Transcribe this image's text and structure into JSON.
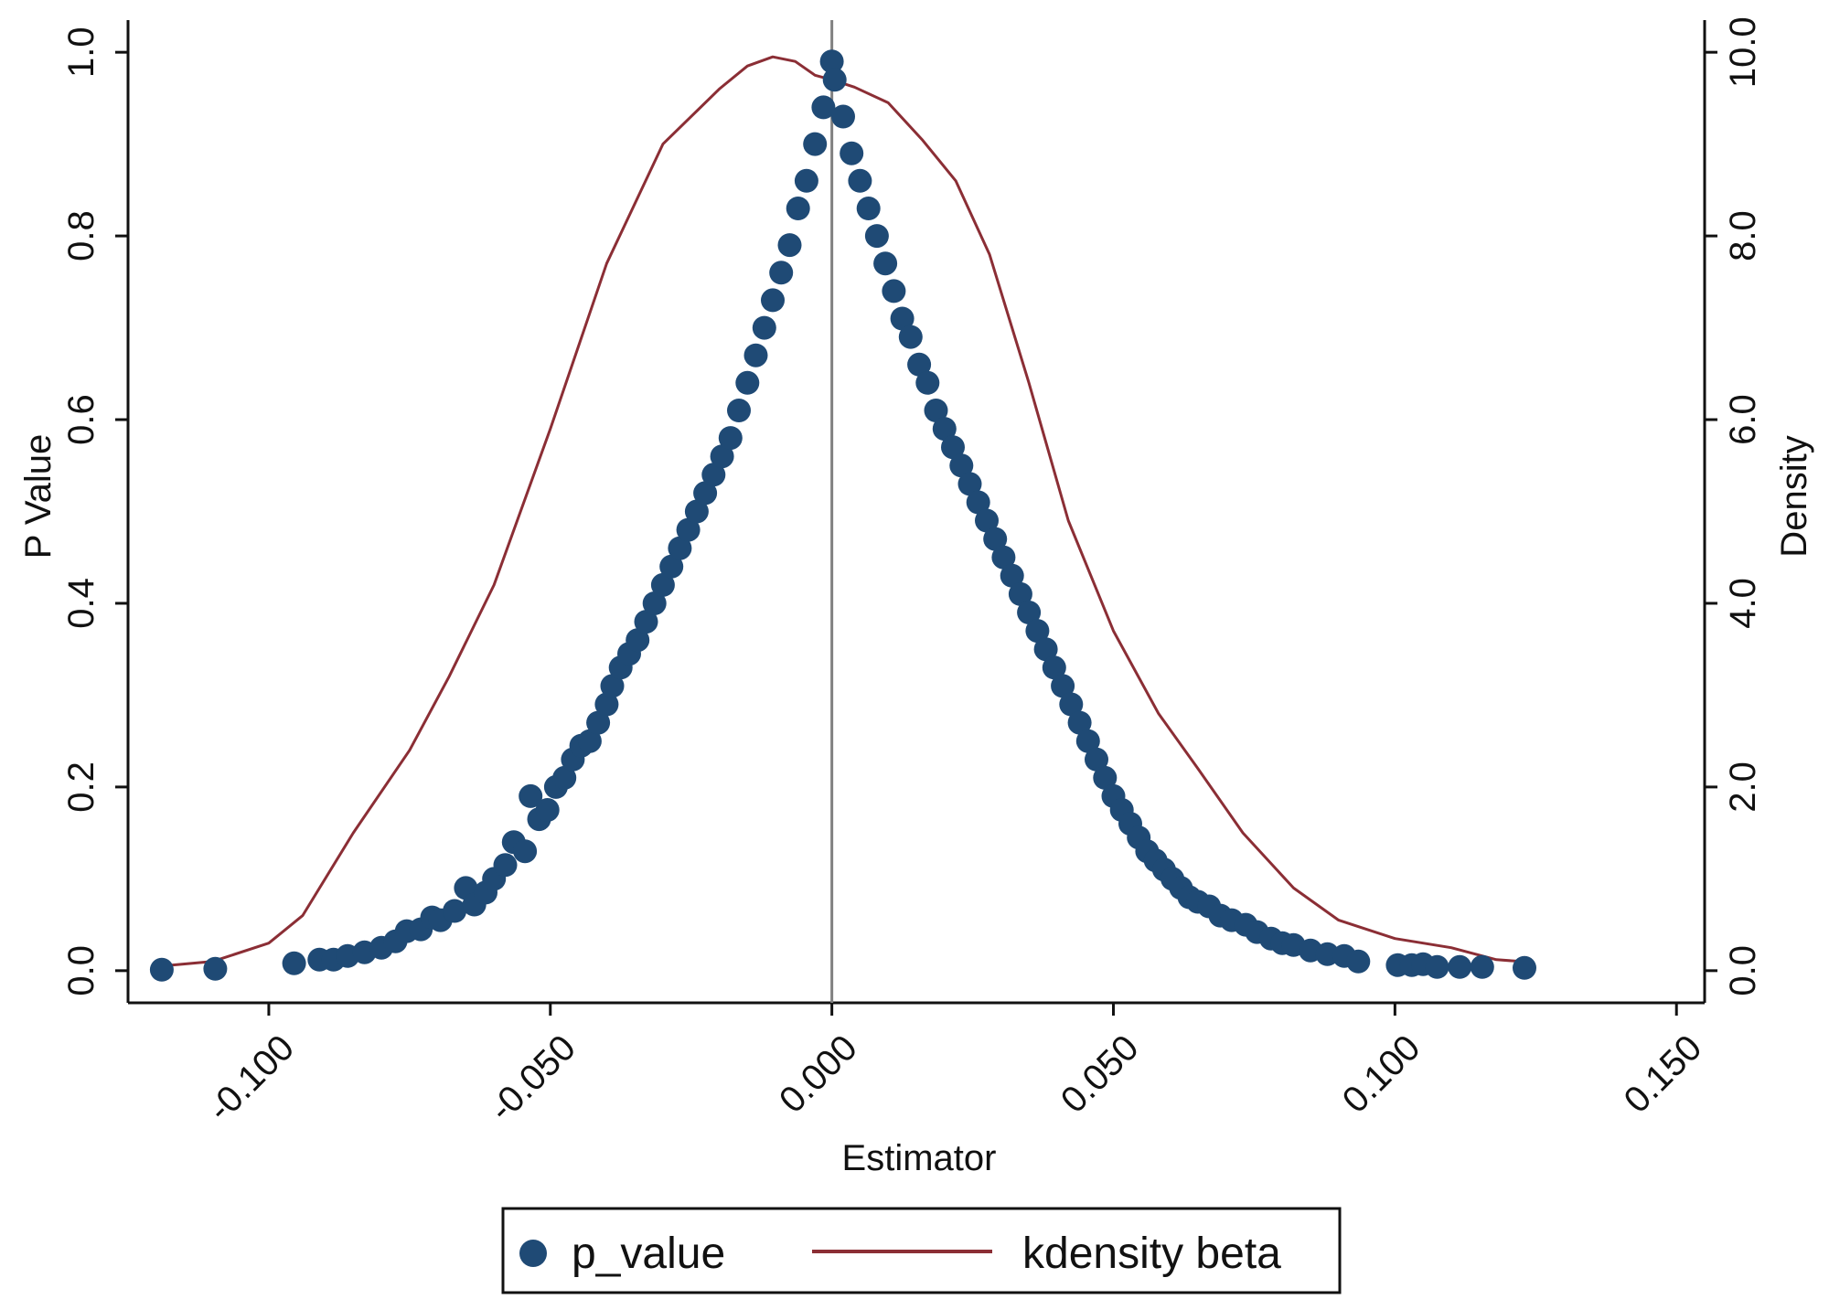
{
  "chart_data": {
    "type": "scatter",
    "xlabel": "Estimator",
    "ylabel": "P Value",
    "ylabel_right": "Density",
    "xlim": [
      -0.125,
      0.155
    ],
    "ylim": [
      -0.035,
      1.035
    ],
    "y2lim": [
      -0.35,
      10.35
    ],
    "x_ticks": [
      -0.1,
      -0.05,
      0.0,
      0.05,
      0.1,
      0.15
    ],
    "x_tick_labels": [
      "-0.100",
      "-0.050",
      "0.000",
      "0.050",
      "0.100",
      "0.150"
    ],
    "y_ticks": [
      0.0,
      0.2,
      0.4,
      0.6,
      0.8,
      1.0
    ],
    "y_tick_labels": [
      "0.0",
      "0.2",
      "0.4",
      "0.6",
      "0.8",
      "1.0"
    ],
    "y2_ticks": [
      0,
      2,
      4,
      6,
      8,
      10
    ],
    "y2_tick_labels": [
      "0.0",
      "2.0",
      "4.0",
      "6.0",
      "8.0",
      "10.0"
    ],
    "reference_line_x": 0.0,
    "grid": false,
    "legend_position": "bottom",
    "series": [
      {
        "name": "p_value",
        "kind": "scatter",
        "axis": "left",
        "color": "#1f4a75",
        "points": [
          [
            -0.119,
            0.001
          ],
          [
            -0.1095,
            0.002
          ],
          [
            -0.0955,
            0.008
          ],
          [
            -0.091,
            0.012
          ],
          [
            -0.0885,
            0.012
          ],
          [
            -0.086,
            0.016
          ],
          [
            -0.083,
            0.02
          ],
          [
            -0.08,
            0.025
          ],
          [
            -0.0775,
            0.032
          ],
          [
            -0.0755,
            0.043
          ],
          [
            -0.073,
            0.045
          ],
          [
            -0.071,
            0.058
          ],
          [
            -0.0695,
            0.055
          ],
          [
            -0.067,
            0.065
          ],
          [
            -0.065,
            0.09
          ],
          [
            -0.0635,
            0.072
          ],
          [
            -0.0615,
            0.085
          ],
          [
            -0.06,
            0.1
          ],
          [
            -0.058,
            0.115
          ],
          [
            -0.0565,
            0.14
          ],
          [
            -0.0545,
            0.13
          ],
          [
            -0.0535,
            0.19
          ],
          [
            -0.052,
            0.165
          ],
          [
            -0.0505,
            0.175
          ],
          [
            -0.049,
            0.2
          ],
          [
            -0.0475,
            0.21
          ],
          [
            -0.046,
            0.23
          ],
          [
            -0.0445,
            0.245
          ],
          [
            -0.043,
            0.25
          ],
          [
            -0.0415,
            0.27
          ],
          [
            -0.04,
            0.29
          ],
          [
            -0.039,
            0.31
          ],
          [
            -0.0375,
            0.33
          ],
          [
            -0.036,
            0.345
          ],
          [
            -0.0345,
            0.36
          ],
          [
            -0.033,
            0.38
          ],
          [
            -0.0315,
            0.4
          ],
          [
            -0.03,
            0.42
          ],
          [
            -0.0285,
            0.44
          ],
          [
            -0.027,
            0.46
          ],
          [
            -0.0255,
            0.48
          ],
          [
            -0.024,
            0.5
          ],
          [
            -0.0225,
            0.52
          ],
          [
            -0.021,
            0.54
          ],
          [
            -0.0195,
            0.56
          ],
          [
            -0.018,
            0.58
          ],
          [
            -0.0165,
            0.61
          ],
          [
            -0.015,
            0.64
          ],
          [
            -0.0135,
            0.67
          ],
          [
            -0.012,
            0.7
          ],
          [
            -0.0105,
            0.73
          ],
          [
            -0.009,
            0.76
          ],
          [
            -0.0075,
            0.79
          ],
          [
            -0.006,
            0.83
          ],
          [
            -0.0045,
            0.86
          ],
          [
            -0.003,
            0.9
          ],
          [
            -0.0015,
            0.94
          ],
          [
            0.0,
            0.99
          ],
          [
            0.0005,
            0.97
          ],
          [
            0.002,
            0.93
          ],
          [
            0.0035,
            0.89
          ],
          [
            0.005,
            0.86
          ],
          [
            0.0065,
            0.83
          ],
          [
            0.008,
            0.8
          ],
          [
            0.0095,
            0.77
          ],
          [
            0.011,
            0.74
          ],
          [
            0.0125,
            0.71
          ],
          [
            0.014,
            0.69
          ],
          [
            0.0155,
            0.66
          ],
          [
            0.017,
            0.64
          ],
          [
            0.0185,
            0.61
          ],
          [
            0.02,
            0.59
          ],
          [
            0.0215,
            0.57
          ],
          [
            0.023,
            0.55
          ],
          [
            0.0245,
            0.53
          ],
          [
            0.026,
            0.51
          ],
          [
            0.0275,
            0.49
          ],
          [
            0.029,
            0.47
          ],
          [
            0.0305,
            0.45
          ],
          [
            0.032,
            0.43
          ],
          [
            0.0335,
            0.41
          ],
          [
            0.035,
            0.39
          ],
          [
            0.0365,
            0.37
          ],
          [
            0.038,
            0.35
          ],
          [
            0.0395,
            0.33
          ],
          [
            0.041,
            0.31
          ],
          [
            0.0425,
            0.29
          ],
          [
            0.044,
            0.27
          ],
          [
            0.0455,
            0.25
          ],
          [
            0.047,
            0.23
          ],
          [
            0.0485,
            0.21
          ],
          [
            0.05,
            0.19
          ],
          [
            0.0515,
            0.175
          ],
          [
            0.053,
            0.16
          ],
          [
            0.0545,
            0.145
          ],
          [
            0.056,
            0.13
          ],
          [
            0.0575,
            0.12
          ],
          [
            0.059,
            0.11
          ],
          [
            0.0605,
            0.1
          ],
          [
            0.062,
            0.09
          ],
          [
            0.0635,
            0.08
          ],
          [
            0.065,
            0.075
          ],
          [
            0.067,
            0.07
          ],
          [
            0.069,
            0.06
          ],
          [
            0.071,
            0.055
          ],
          [
            0.0735,
            0.05
          ],
          [
            0.0755,
            0.042
          ],
          [
            0.078,
            0.035
          ],
          [
            0.08,
            0.03
          ],
          [
            0.082,
            0.028
          ],
          [
            0.085,
            0.022
          ],
          [
            0.088,
            0.018
          ],
          [
            0.091,
            0.016
          ],
          [
            0.0935,
            0.01
          ],
          [
            0.1005,
            0.006
          ],
          [
            0.103,
            0.006
          ],
          [
            0.105,
            0.007
          ],
          [
            0.1075,
            0.004
          ],
          [
            0.1115,
            0.004
          ],
          [
            0.1155,
            0.004
          ],
          [
            0.123,
            0.003
          ]
        ]
      },
      {
        "name": "kdensity beta",
        "kind": "line",
        "axis": "right",
        "color": "#8b2e35",
        "points": [
          [
            -0.119,
            0.05
          ],
          [
            -0.11,
            0.1
          ],
          [
            -0.1,
            0.3
          ],
          [
            -0.094,
            0.6
          ],
          [
            -0.085,
            1.5
          ],
          [
            -0.075,
            2.4
          ],
          [
            -0.068,
            3.2
          ],
          [
            -0.06,
            4.2
          ],
          [
            -0.05,
            5.9
          ],
          [
            -0.04,
            7.7
          ],
          [
            -0.03,
            9.0
          ],
          [
            -0.02,
            9.6
          ],
          [
            -0.015,
            9.85
          ],
          [
            -0.0105,
            9.95
          ],
          [
            -0.0065,
            9.9
          ],
          [
            -0.003,
            9.75
          ],
          [
            0.0,
            9.7
          ],
          [
            0.004,
            9.62
          ],
          [
            0.01,
            9.45
          ],
          [
            0.016,
            9.05
          ],
          [
            0.022,
            8.6
          ],
          [
            0.028,
            7.8
          ],
          [
            0.035,
            6.4
          ],
          [
            0.042,
            4.9
          ],
          [
            0.05,
            3.7
          ],
          [
            0.058,
            2.8
          ],
          [
            0.065,
            2.2
          ],
          [
            0.073,
            1.5
          ],
          [
            0.082,
            0.9
          ],
          [
            0.09,
            0.55
          ],
          [
            0.1,
            0.35
          ],
          [
            0.11,
            0.25
          ],
          [
            0.118,
            0.12
          ],
          [
            0.1225,
            0.1
          ]
        ]
      }
    ]
  },
  "legend": {
    "items": [
      {
        "label": "p_value",
        "symbol": "marker"
      },
      {
        "label": "kdensity beta",
        "symbol": "line"
      }
    ]
  }
}
